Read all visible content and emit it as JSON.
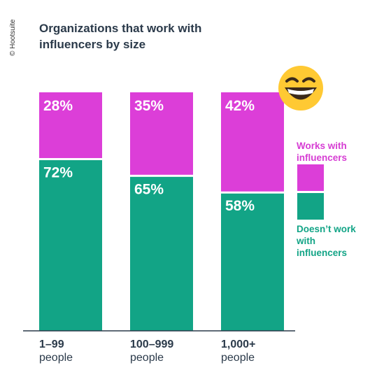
{
  "credit": "© Hootsuite",
  "chart_data": {
    "type": "bar",
    "stacked": true,
    "title": "Organizations that work with influencers by size",
    "categories": [
      [
        "1–99",
        "people"
      ],
      [
        "100–999",
        "people"
      ],
      [
        "1,000+",
        "people"
      ]
    ],
    "series": [
      {
        "name": "Doesn’t work with influencers",
        "values": [
          72,
          65,
          58
        ],
        "color": "#12a486"
      },
      {
        "name": "Works with influencers",
        "values": [
          28,
          35,
          42
        ],
        "color": "#dc3ed8"
      }
    ],
    "ylim": [
      0,
      100
    ],
    "value_suffix": "%",
    "legend_position": "right",
    "grid": false
  },
  "legend": {
    "works": "Works with influencers",
    "doesnt": "Doesn’t work with influencers"
  },
  "decoration": {
    "icon": "grinning-face-emoji"
  }
}
